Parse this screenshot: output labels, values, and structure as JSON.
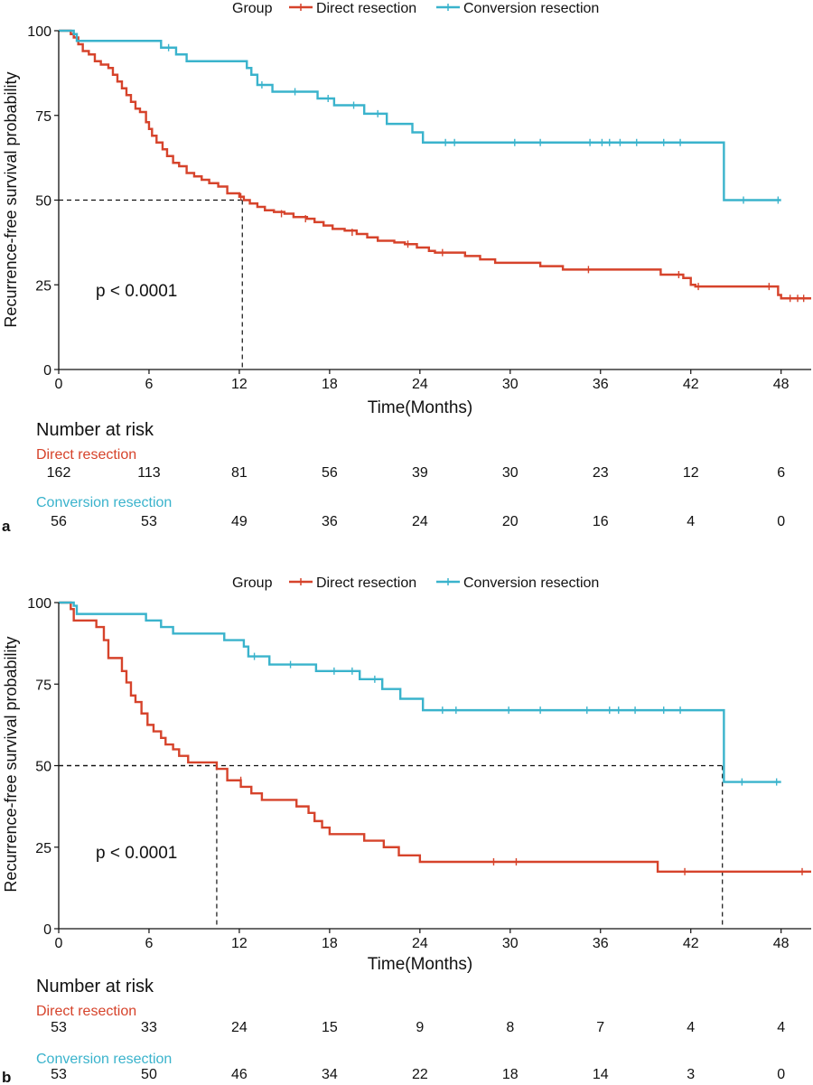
{
  "panels": [
    {
      "id": "a",
      "panel_label": "a",
      "legend": {
        "title": "Group",
        "entries": [
          "Direct resection",
          "Conversion resection"
        ]
      },
      "p_value": "p < 0.0001",
      "ylabel": "Recurrence-free survival probability",
      "xlabel": "Time(Months)",
      "risk_table": {
        "title": "Number at risk",
        "rows": [
          {
            "name": "Direct resection",
            "values": [
              "162",
              "113",
              "81",
              "56",
              "39",
              "30",
              "23",
              "12",
              "6"
            ]
          },
          {
            "name": "Conversion resection",
            "values": [
              "56",
              "53",
              "49",
              "36",
              "24",
              "20",
              "16",
              "4",
              "0"
            ]
          }
        ]
      }
    },
    {
      "id": "b",
      "panel_label": "b",
      "legend": {
        "title": "Group",
        "entries": [
          "Direct resection",
          "Conversion resection"
        ]
      },
      "p_value": "p < 0.0001",
      "ylabel": "Recurrence-free survival probability",
      "xlabel": "Time(Months)",
      "risk_table": {
        "title": "Number at risk",
        "rows": [
          {
            "name": "Direct resection",
            "values": [
              "53",
              "33",
              "24",
              "15",
              "9",
              "8",
              "7",
              "4",
              "4"
            ]
          },
          {
            "name": "Conversion resection",
            "values": [
              "53",
              "50",
              "46",
              "34",
              "22",
              "18",
              "14",
              "3",
              "0"
            ]
          }
        ]
      }
    }
  ],
  "colors": {
    "direct": "#d6432b",
    "conversion": "#3ab3cc",
    "axis": "#111111"
  },
  "chart_data": [
    {
      "type": "line",
      "subtype": "kaplan-meier",
      "title": "",
      "xlabel": "Time(Months)",
      "ylabel": "Recurrence-free survival probability",
      "xlim": [
        0,
        50
      ],
      "ylim": [
        0,
        100
      ],
      "xticks": [
        0,
        6,
        12,
        18,
        24,
        30,
        36,
        42,
        48
      ],
      "yticks": [
        0,
        25,
        50,
        75,
        100
      ],
      "median_lines": [
        12.2
      ],
      "series": [
        {
          "name": "Direct resection",
          "color_key": "direct",
          "points": [
            [
              0,
              100
            ],
            [
              0.8,
              99
            ],
            [
              1,
              98
            ],
            [
              1.3,
              96
            ],
            [
              1.6,
              94
            ],
            [
              2,
              93
            ],
            [
              2.4,
              91
            ],
            [
              2.8,
              90
            ],
            [
              3.3,
              89
            ],
            [
              3.6,
              87
            ],
            [
              3.9,
              85
            ],
            [
              4.2,
              83
            ],
            [
              4.5,
              81
            ],
            [
              4.8,
              79
            ],
            [
              5.1,
              77
            ],
            [
              5.4,
              76
            ],
            [
              5.8,
              73
            ],
            [
              6,
              71
            ],
            [
              6.2,
              69
            ],
            [
              6.5,
              67
            ],
            [
              6.9,
              65
            ],
            [
              7.2,
              63
            ],
            [
              7.6,
              61
            ],
            [
              8,
              60
            ],
            [
              8.5,
              58
            ],
            [
              9,
              57
            ],
            [
              9.5,
              56
            ],
            [
              10,
              55
            ],
            [
              10.6,
              54
            ],
            [
              11.2,
              52
            ],
            [
              12,
              51
            ],
            [
              12.3,
              50
            ],
            [
              12.7,
              49
            ],
            [
              13.2,
              48
            ],
            [
              13.7,
              47
            ],
            [
              14.3,
              46.5
            ],
            [
              15,
              46
            ],
            [
              15.6,
              45
            ],
            [
              16.5,
              44.5
            ],
            [
              17,
              43.5
            ],
            [
              17.6,
              42.5
            ],
            [
              18.2,
              41.5
            ],
            [
              19,
              41
            ],
            [
              19.8,
              40
            ],
            [
              20.5,
              39
            ],
            [
              21.2,
              38
            ],
            [
              22.3,
              37.5
            ],
            [
              23,
              37
            ],
            [
              23.8,
              36
            ],
            [
              24.6,
              35
            ],
            [
              25,
              34.5
            ],
            [
              27,
              33.5
            ],
            [
              28,
              32.5
            ],
            [
              29,
              31.5
            ],
            [
              32,
              30.5
            ],
            [
              33.5,
              29.5
            ],
            [
              40,
              28
            ],
            [
              41.5,
              27
            ],
            [
              42,
              25
            ],
            [
              42.3,
              24.5
            ],
            [
              47.8,
              22
            ],
            [
              48,
              21
            ],
            [
              50,
              21
            ]
          ],
          "censors": [
            [
              12.1,
              51
            ],
            [
              14.8,
              46
            ],
            [
              16.4,
              44.5
            ],
            [
              19.5,
              40.5
            ],
            [
              23.2,
              37
            ],
            [
              25.5,
              34.5
            ],
            [
              35.2,
              29.5
            ],
            [
              41.2,
              28
            ],
            [
              42.5,
              24.5
            ],
            [
              47.2,
              24.5
            ],
            [
              48.6,
              21
            ],
            [
              49.1,
              21
            ],
            [
              49.5,
              21
            ]
          ]
        },
        {
          "name": "Conversion resection",
          "color_key": "conversion",
          "points": [
            [
              0,
              100
            ],
            [
              1,
              99
            ],
            [
              1.2,
              97
            ],
            [
              6.8,
              95
            ],
            [
              7.8,
              93
            ],
            [
              8.5,
              91
            ],
            [
              12.5,
              89
            ],
            [
              12.8,
              87
            ],
            [
              13.2,
              84
            ],
            [
              14.2,
              82
            ],
            [
              17.2,
              80
            ],
            [
              18.3,
              78
            ],
            [
              20.3,
              75.5
            ],
            [
              21.8,
              72.5
            ],
            [
              23.5,
              70
            ],
            [
              24.2,
              67
            ],
            [
              44.1,
              67
            ],
            [
              44.2,
              50
            ],
            [
              48,
              50
            ]
          ],
          "censors": [
            [
              7.3,
              95
            ],
            [
              13.5,
              84
            ],
            [
              15.7,
              82
            ],
            [
              17.9,
              80
            ],
            [
              19.6,
              78
            ],
            [
              21.2,
              75.5
            ],
            [
              25.7,
              67
            ],
            [
              26.3,
              67
            ],
            [
              30.3,
              67
            ],
            [
              32,
              67
            ],
            [
              35.3,
              67
            ],
            [
              36.1,
              67
            ],
            [
              36.6,
              67
            ],
            [
              37.3,
              67
            ],
            [
              38.4,
              67
            ],
            [
              40.2,
              67
            ],
            [
              41.3,
              67
            ],
            [
              45.5,
              50
            ],
            [
              47.8,
              50
            ]
          ]
        }
      ]
    },
    {
      "type": "line",
      "subtype": "kaplan-meier",
      "title": "",
      "xlabel": "Time(Months)",
      "ylabel": "Recurrence-free survival probability",
      "xlim": [
        0,
        50
      ],
      "ylim": [
        0,
        100
      ],
      "xticks": [
        0,
        6,
        12,
        18,
        24,
        30,
        36,
        42,
        48
      ],
      "yticks": [
        0,
        25,
        50,
        75,
        100
      ],
      "median_lines": [
        10.5,
        44.1
      ],
      "series": [
        {
          "name": "Direct resection",
          "color_key": "direct",
          "points": [
            [
              0,
              100
            ],
            [
              0.8,
              98
            ],
            [
              1,
              94.5
            ],
            [
              2.5,
              92.5
            ],
            [
              3,
              88.5
            ],
            [
              3.3,
              83
            ],
            [
              4.2,
              79
            ],
            [
              4.5,
              75.5
            ],
            [
              4.8,
              71.5
            ],
            [
              5.1,
              69.5
            ],
            [
              5.5,
              66
            ],
            [
              5.9,
              62.5
            ],
            [
              6.3,
              60.5
            ],
            [
              6.8,
              58.5
            ],
            [
              7.1,
              56.5
            ],
            [
              7.6,
              55
            ],
            [
              8,
              53
            ],
            [
              8.6,
              51
            ],
            [
              10.5,
              49
            ],
            [
              11.2,
              45.5
            ],
            [
              12.1,
              43.5
            ],
            [
              12.8,
              41.5
            ],
            [
              13.5,
              39.5
            ],
            [
              15.8,
              37.5
            ],
            [
              16.6,
              35.5
            ],
            [
              17,
              33
            ],
            [
              17.5,
              31
            ],
            [
              18,
              29
            ],
            [
              20.3,
              27
            ],
            [
              21.6,
              25
            ],
            [
              22.6,
              22.5
            ],
            [
              24,
              20.5
            ],
            [
              39.8,
              17.5
            ],
            [
              50,
              17.5
            ]
          ],
          "censors": [
            [
              12.1,
              45.5
            ],
            [
              28.9,
              20.5
            ],
            [
              30.4,
              20.5
            ],
            [
              41.6,
              17.5
            ],
            [
              49.4,
              17.5
            ]
          ]
        },
        {
          "name": "Conversion resection",
          "color_key": "conversion",
          "points": [
            [
              0,
              100
            ],
            [
              1,
              99
            ],
            [
              1.2,
              96.5
            ],
            [
              5.8,
              94.5
            ],
            [
              6.8,
              92.5
            ],
            [
              7.6,
              90.5
            ],
            [
              11,
              88.5
            ],
            [
              12.3,
              86.5
            ],
            [
              12.6,
              83.5
            ],
            [
              14,
              81
            ],
            [
              17.1,
              79
            ],
            [
              20,
              76.5
            ],
            [
              21.5,
              73.5
            ],
            [
              22.7,
              70.5
            ],
            [
              24.2,
              67
            ],
            [
              44.1,
              67
            ],
            [
              44.2,
              45
            ],
            [
              48,
              45
            ]
          ],
          "censors": [
            [
              13,
              83.5
            ],
            [
              15.4,
              81
            ],
            [
              18.3,
              79
            ],
            [
              19.5,
              79
            ],
            [
              21,
              76.5
            ],
            [
              25.5,
              67
            ],
            [
              26.4,
              67
            ],
            [
              29.9,
              67
            ],
            [
              32,
              67
            ],
            [
              35.1,
              67
            ],
            [
              36.6,
              67
            ],
            [
              37.2,
              67
            ],
            [
              38.3,
              67
            ],
            [
              40.2,
              67
            ],
            [
              41.3,
              67
            ],
            [
              45.4,
              45
            ],
            [
              47.7,
              45
            ]
          ]
        }
      ]
    }
  ]
}
